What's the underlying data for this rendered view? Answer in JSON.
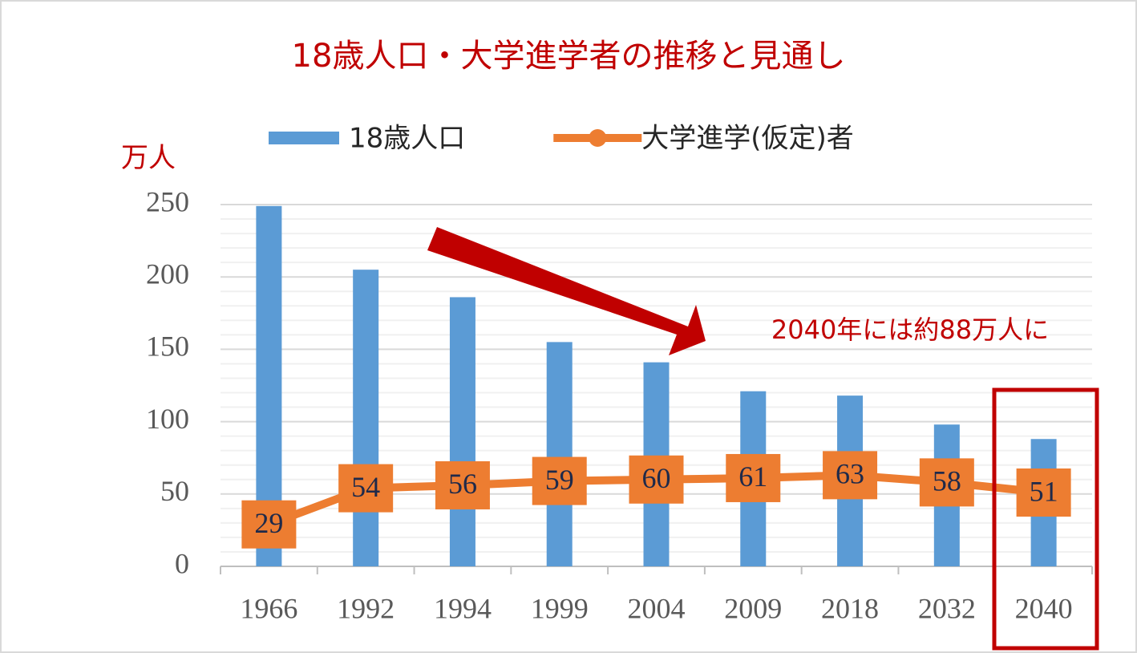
{
  "chart_data": {
    "type": "bar",
    "title": "18歳人口・大学進学者の推移と見通し",
    "y_label": "万人",
    "annotation": "2040年には約88万人に",
    "categories": [
      "1966",
      "1992",
      "1994",
      "1999",
      "2004",
      "2009",
      "2018",
      "2032",
      "2040"
    ],
    "series": [
      {
        "name": "18歳人口",
        "type": "bar",
        "color": "#5b9bd5",
        "values": [
          249,
          205,
          186,
          155,
          141,
          121,
          118,
          98,
          88
        ]
      },
      {
        "name": "大学進学(仮定)者",
        "type": "line",
        "color": "#ed7d31",
        "values": [
          29,
          54,
          56,
          59,
          60,
          61,
          63,
          58,
          51
        ]
      }
    ],
    "ylim": [
      0,
      250
    ],
    "yticks": [
      0,
      50,
      100,
      150,
      200,
      250
    ],
    "yminorticks": [
      10,
      20,
      30,
      40,
      60,
      70,
      80,
      90,
      110,
      120,
      130,
      140,
      160,
      170,
      180,
      190,
      210,
      220,
      230,
      240
    ],
    "grid": true
  }
}
